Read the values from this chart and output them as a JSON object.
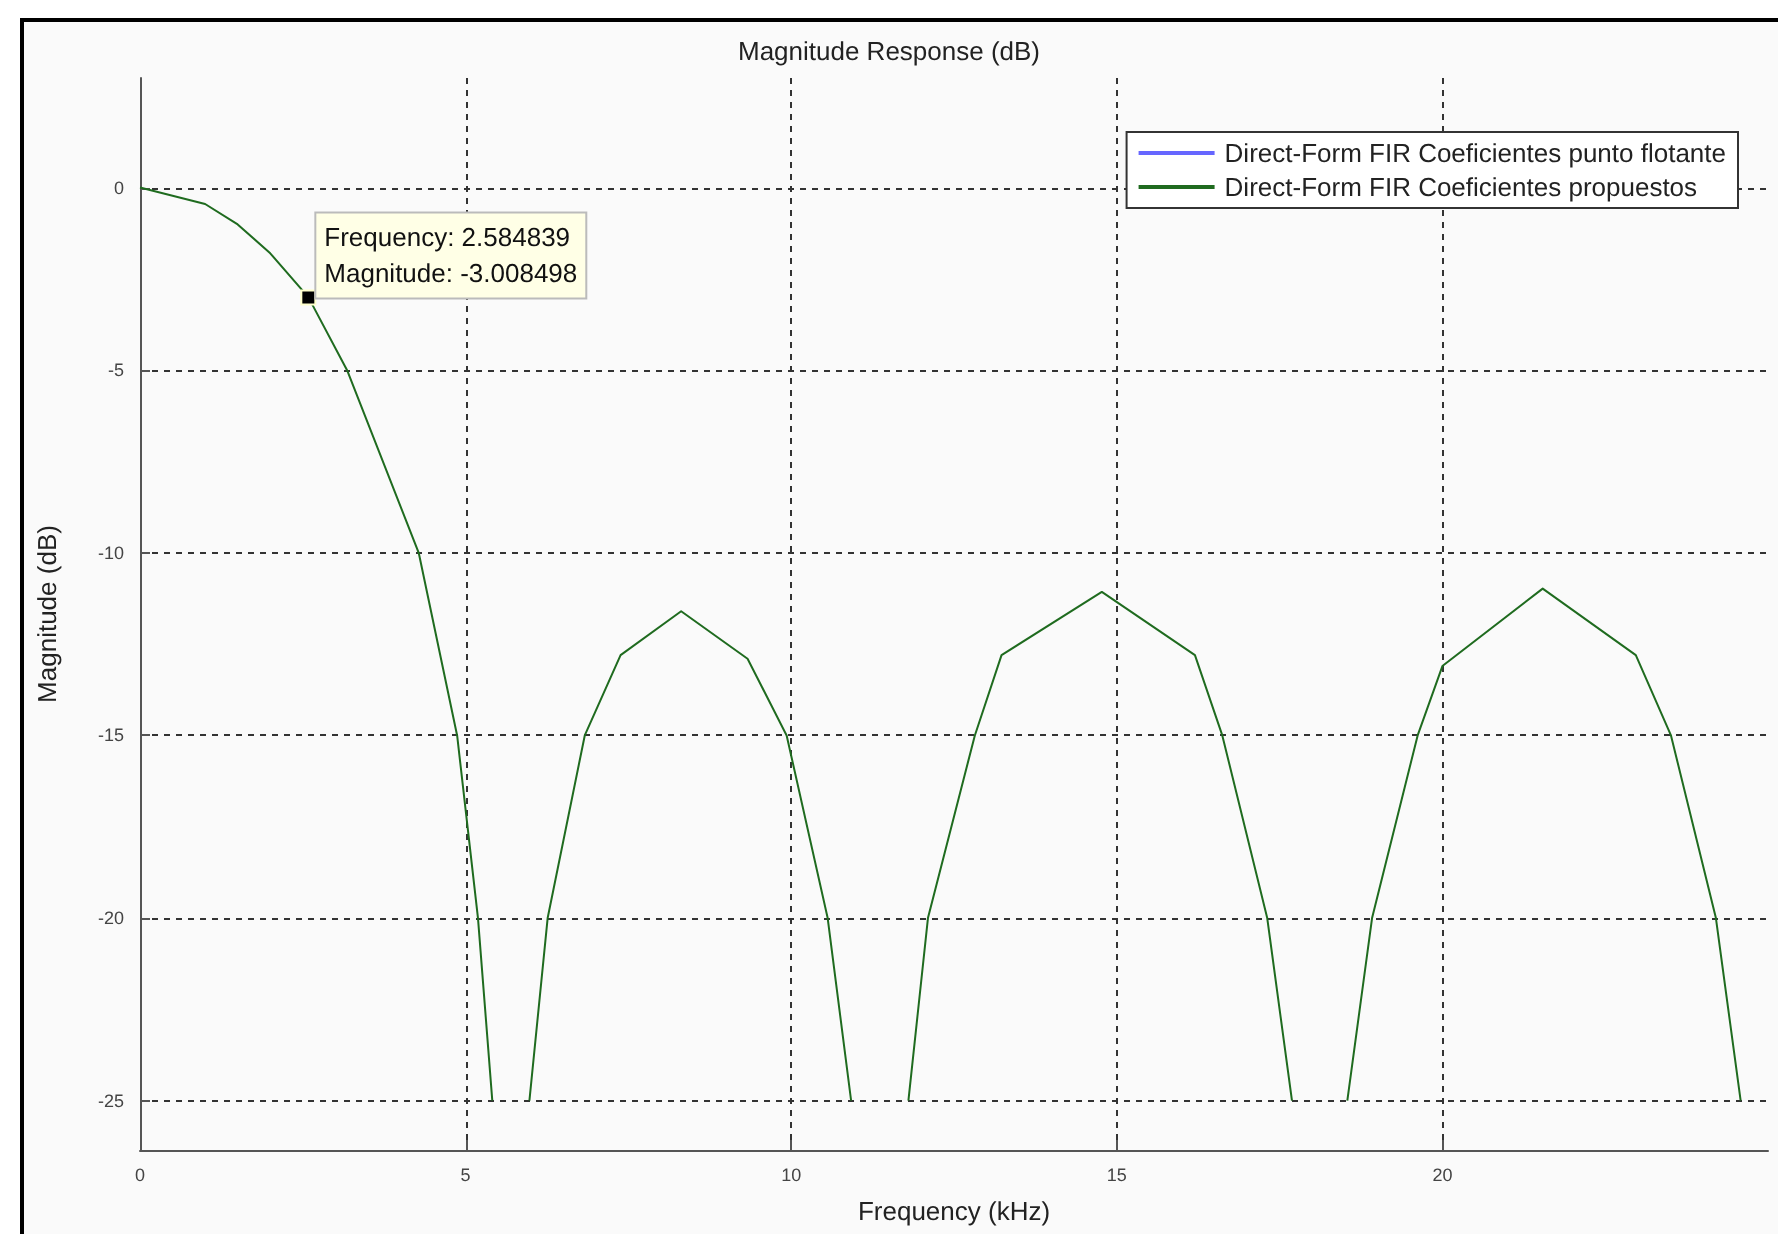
{
  "chart_data": {
    "type": "line",
    "title": "Magnitude Response (dB)",
    "xlabel": "Frequency (kHz)",
    "ylabel": "Magnitude (dB)",
    "x": [
      0,
      1,
      1.5,
      2,
      2.585,
      3.18,
      4.28,
      4.87,
      5.19,
      5.41,
      5.45,
      5.71,
      5.96,
      5.98,
      6.26,
      6.83,
      7.38,
      8.31,
      9.33,
      9.93,
      10.56,
      10.92,
      10.99,
      11.37,
      11.74,
      11.8,
      12.1,
      12.82,
      13.23,
      14.77,
      16.2,
      16.62,
      17.31,
      17.69,
      17.76,
      18.14,
      18.51,
      18.54,
      18.92,
      19.62,
      20,
      21.54,
      22.97,
      23.51,
      24.2,
      24.58
    ],
    "series": [
      {
        "name": "Direct-Form FIR Coeficientes punto flotante",
        "color": "#6666ff",
        "values": [
          null,
          null,
          null,
          null,
          null,
          null,
          null,
          null,
          null,
          null,
          null,
          null,
          null,
          null,
          null,
          null,
          null,
          null,
          null,
          null,
          null,
          null,
          null,
          null,
          null,
          null,
          null,
          null,
          null,
          null,
          null,
          null,
          null,
          null,
          null,
          null,
          null,
          null,
          null,
          null,
          null,
          null,
          null,
          null,
          null,
          null
        ]
      },
      {
        "name": "Direct-Form FIR Coeficientes propuestos",
        "color": "#1f6b1f",
        "values": [
          0,
          -0.45,
          -1.01,
          -1.8,
          -3,
          -5,
          -10,
          -15,
          -20,
          -25,
          null,
          null,
          null,
          -25,
          -20,
          -15,
          -12.8,
          -11.6,
          -12.9,
          -15,
          -20,
          -25,
          null,
          null,
          null,
          -25,
          -20,
          -15,
          -12.8,
          -11.07,
          -12.8,
          -15,
          -20,
          -25,
          null,
          null,
          null,
          -25,
          -20,
          -15,
          -13.1,
          -10.98,
          -12.8,
          -15,
          -20,
          -25
        ]
      }
    ],
    "xlim": [
      0,
      25
    ],
    "xticks": [
      0,
      5,
      10,
      15,
      20
    ],
    "ylim": [
      -26.35,
      3
    ],
    "yticks": [
      -25,
      -20,
      -15,
      -10,
      -5,
      0
    ],
    "grid": true,
    "legend": "top right",
    "marker": "none",
    "line_style": "solid",
    "annotations": [
      {
        "text": "Frequency: 2.584839\nMagnitude: -3.008498",
        "x": 2.584839,
        "y": -3.008498
      }
    ]
  }
}
